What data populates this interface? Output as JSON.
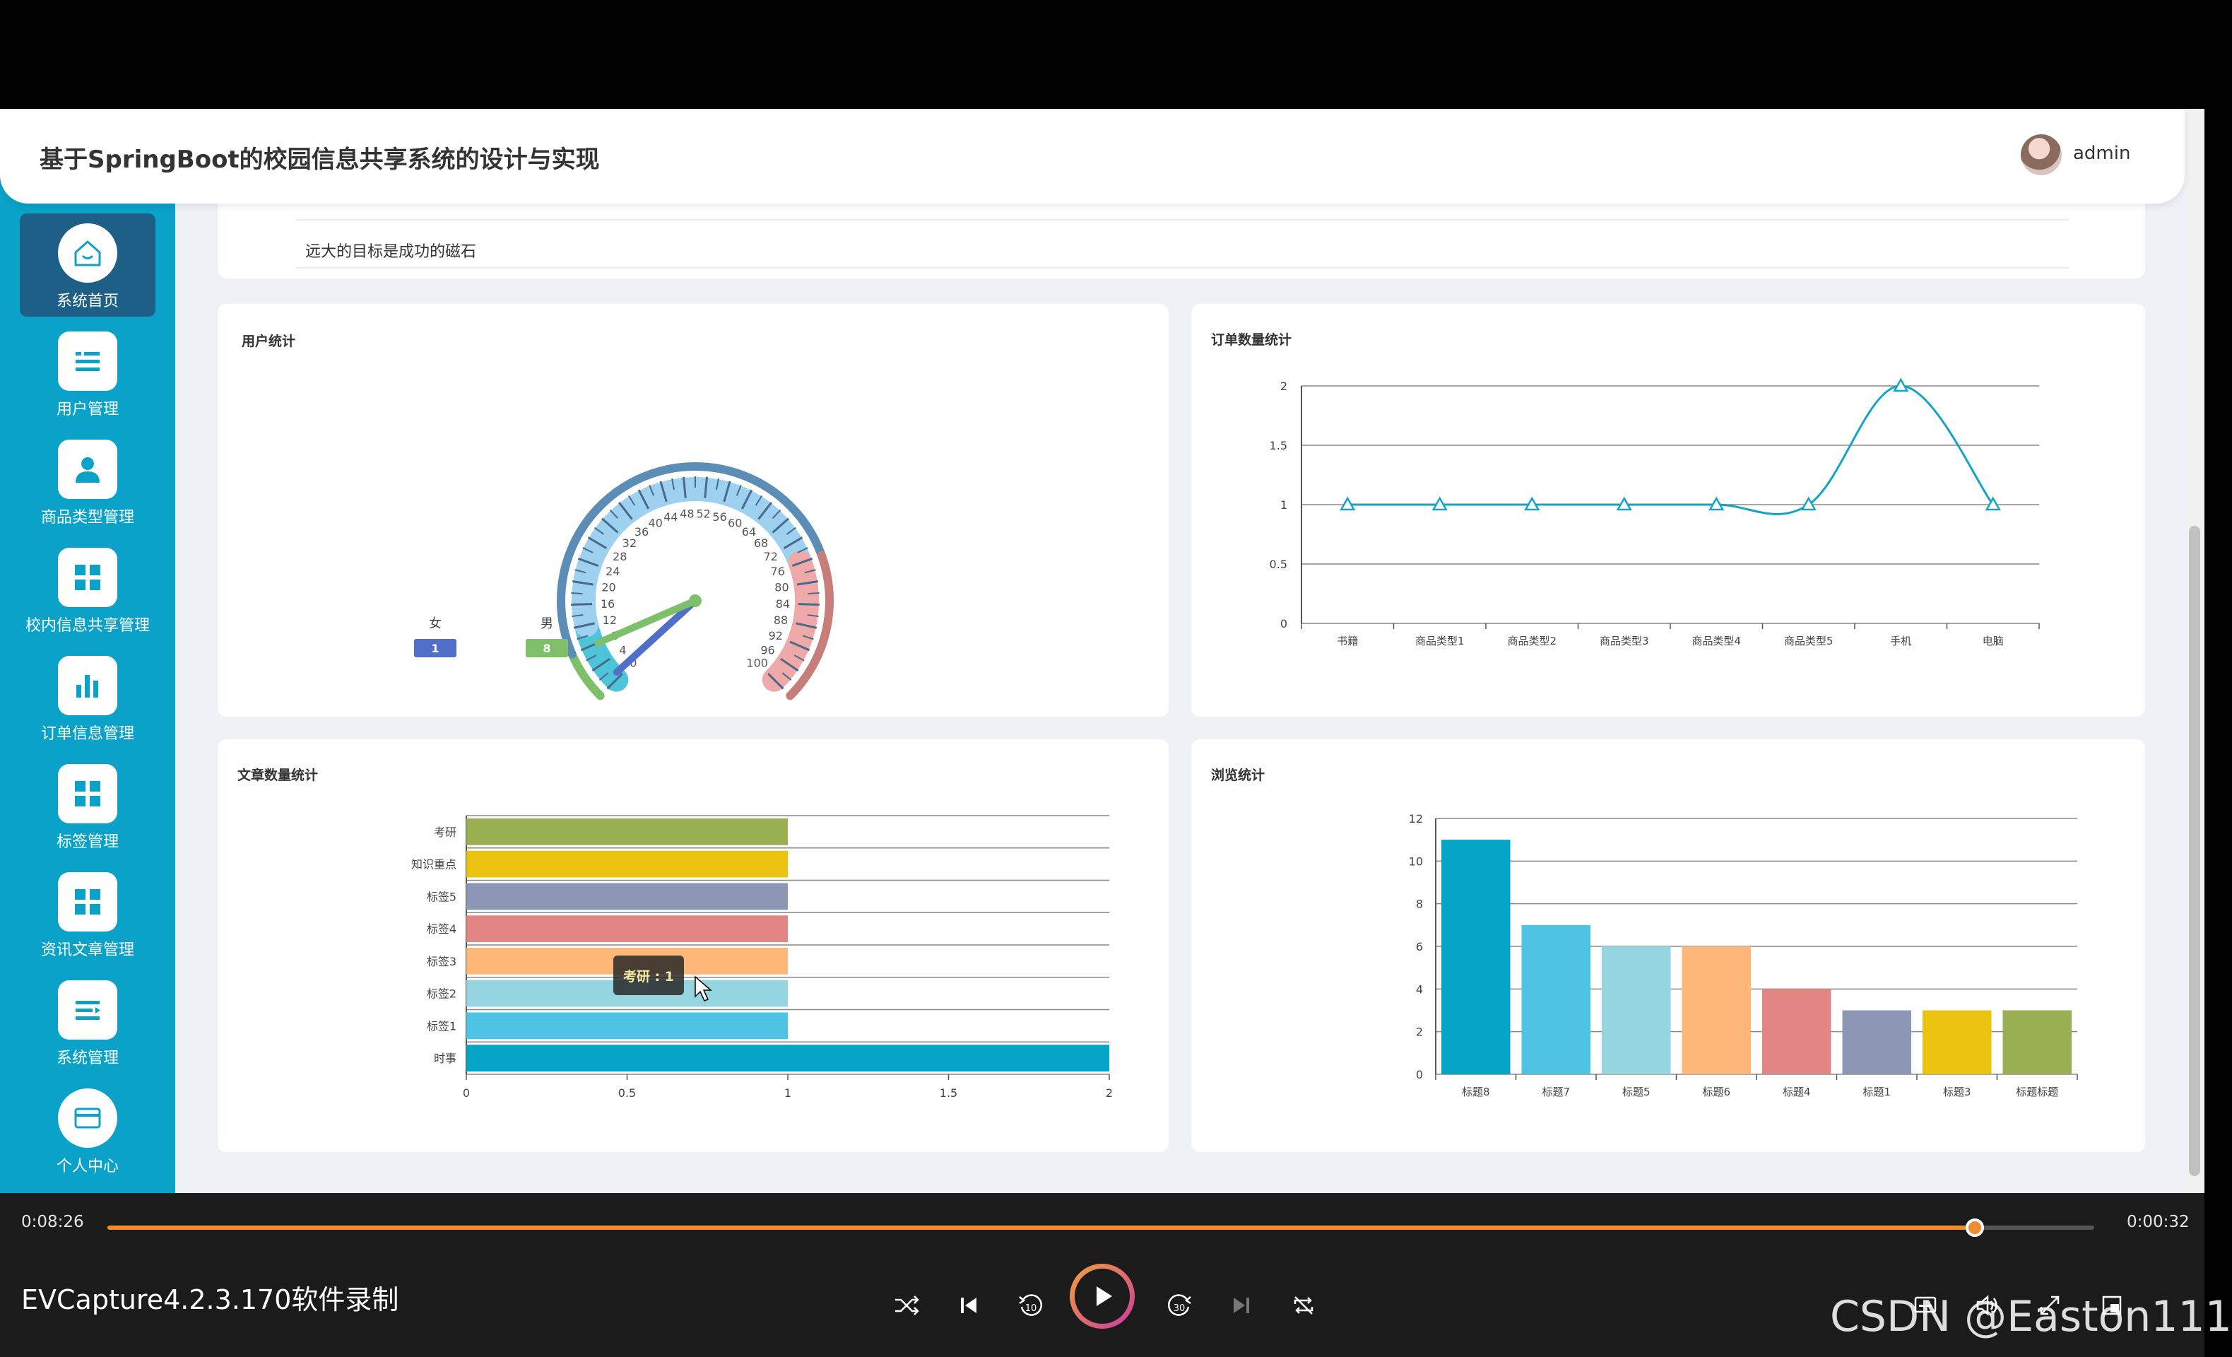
{
  "header": {
    "title": "基于SpringBoot的校园信息共享系统的设计与实现",
    "user": "admin"
  },
  "sidebar": {
    "items": [
      {
        "label": "系统首页",
        "icon": "home-icon",
        "active": true
      },
      {
        "label": "用户管理",
        "icon": "list-icon"
      },
      {
        "label": "商品类型管理",
        "icon": "user-icon"
      },
      {
        "label": "校内信息共享管理",
        "icon": "grid-icon"
      },
      {
        "label": "订单信息管理",
        "icon": "bar-chart-icon"
      },
      {
        "label": "标签管理",
        "icon": "grid-icon"
      },
      {
        "label": "资讯文章管理",
        "icon": "grid-icon"
      },
      {
        "label": "系统管理",
        "icon": "list-icon"
      },
      {
        "label": "个人中心",
        "icon": "card-icon"
      }
    ]
  },
  "motto": "远大的目标是成功的磁石",
  "colors": {
    "sidebar": "#0aa2c8",
    "active_nav": "#1d5f86",
    "progress": "#f08c2e"
  },
  "chart_data": [
    {
      "type": "gauge",
      "title": "用户统计",
      "min": 0,
      "max": 100,
      "ticks": [
        "0",
        "4",
        "8",
        "12",
        "16",
        "20",
        "24",
        "28",
        "32",
        "36",
        "40",
        "44",
        "48",
        "52",
        "56",
        "60",
        "64",
        "68",
        "72",
        "76",
        "80",
        "84",
        "88",
        "92",
        "96",
        "100"
      ],
      "series": [
        {
          "name": "女",
          "value": 1,
          "color": "#4f6fc8"
        },
        {
          "name": "男",
          "value": 8,
          "color": "#7ebf6a"
        }
      ]
    },
    {
      "type": "line",
      "title": "订单数量统计",
      "categories": [
        "书籍",
        "商品类型1",
        "商品类型2",
        "商品类型3",
        "商品类型4",
        "商品类型5",
        "手机",
        "电脑"
      ],
      "values": [
        1,
        1,
        1,
        1,
        1,
        1,
        2,
        1
      ],
      "ylim": [
        0,
        2
      ],
      "yticks": [
        "0",
        "0.5",
        "1",
        "1.5",
        "2"
      ],
      "color": "#13a6c4"
    },
    {
      "type": "bar",
      "orientation": "horizontal",
      "title": "文章数量统计",
      "categories": [
        "考研",
        "知识重点",
        "标签5",
        "标签4",
        "标签3",
        "标签2",
        "标签1",
        "时事"
      ],
      "values": [
        1,
        1,
        1,
        1,
        1,
        1,
        1,
        2
      ],
      "colors": [
        "#9aaf52",
        "#e9c310",
        "#8c97b6",
        "#e28683",
        "#fdb879",
        "#94d5e0",
        "#4fc3e4",
        "#04a4c7"
      ],
      "xlim": [
        0,
        2
      ],
      "xticks": [
        "0",
        "0.5",
        "1",
        "1.5",
        "2"
      ],
      "tooltip": "考研 : 1"
    },
    {
      "type": "bar",
      "title": "浏览统计",
      "categories": [
        "标题8",
        "标题7",
        "标题5",
        "标题6",
        "标题4",
        "标题1",
        "标题3",
        "标题标题"
      ],
      "values": [
        11,
        7,
        6,
        6,
        4,
        3,
        3,
        3
      ],
      "colors": [
        "#04a4c7",
        "#4fc3e4",
        "#94d5e0",
        "#fdb879",
        "#e28683",
        "#8c97b6",
        "#e9c310",
        "#9aaf52"
      ],
      "ylim": [
        0,
        12
      ],
      "yticks": [
        "0",
        "2",
        "4",
        "6",
        "8",
        "10",
        "12"
      ]
    }
  ],
  "player": {
    "elapsed": "0:08:26",
    "remaining": "0:00:32",
    "progress": 0.94,
    "name": "EVCapture4.2.3.170软件录制",
    "watermark": "CSDN @Easton111"
  }
}
